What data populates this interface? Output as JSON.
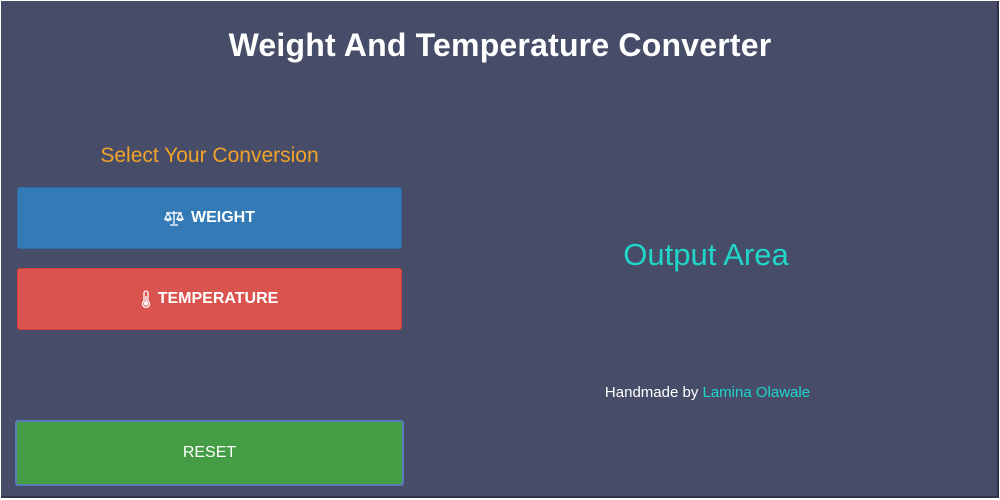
{
  "app": {
    "title": "Weight And Temperature Converter"
  },
  "controls": {
    "heading": "Select Your Conversion",
    "weight_label": "WEIGHT",
    "weight_icon": "balance-scale-icon",
    "temperature_label": "TEMPERATURE",
    "temperature_icon": "thermometer-icon",
    "reset_label": "RESET"
  },
  "output": {
    "placeholder": "Output Area"
  },
  "footer": {
    "prefix": "Handmade by",
    "author": "Lamina Olawale"
  },
  "colors": {
    "background": "#474d69",
    "heading": "#f1a229",
    "accent": "#1fd6c9",
    "weight_button": "#337ab7",
    "temperature_button": "#d9534f",
    "reset_button": "#449d44"
  }
}
